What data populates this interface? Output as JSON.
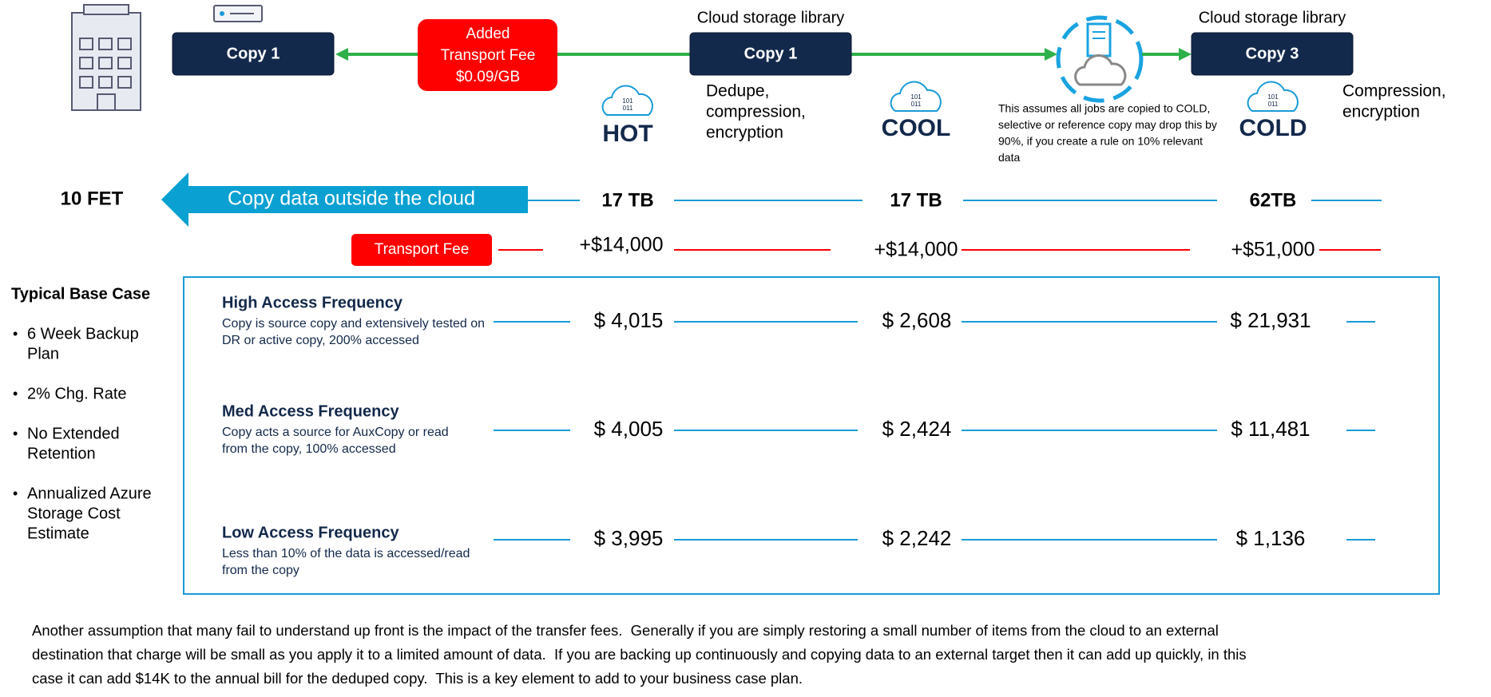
{
  "source_copy": "Copy 1",
  "added_fee": [
    "Added",
    "Transport Fee",
    "$0.09/GB"
  ],
  "library_copies": [
    {
      "header": "Cloud storage library",
      "label": "Copy 1"
    },
    {
      "header": "Cloud storage library",
      "label": "Copy 3"
    }
  ],
  "cloud_icon_text": [
    "101",
    "011"
  ],
  "tiers": [
    {
      "name": "HOT",
      "size": "17 TB",
      "transport": "+$14,000"
    },
    {
      "name": "COOL",
      "size": "17 TB",
      "transport": "+$14,000"
    },
    {
      "name": "COLD",
      "size": "62TB",
      "transport": "+$51,000"
    }
  ],
  "notes": {
    "hot": [
      "Dedupe,",
      "compression,",
      "encryption"
    ],
    "cool": [
      "This assumes all jobs are copied to COLD,",
      "selective or reference copy may drop this by",
      "90%, if you create a rule on 10% relevant",
      "data"
    ],
    "cold": [
      "Compression,",
      "encryption"
    ]
  },
  "copy_out": {
    "label": "10 FET",
    "arrow": "Copy data outside the cloud"
  },
  "transport_fee": "Transport Fee",
  "base_case": {
    "title": "Typical Base Case",
    "bullet": "•",
    "items": [
      [
        "6 Week Backup",
        "Plan"
      ],
      [
        "2% Chg. Rate"
      ],
      [
        "No Extended",
        "Retention"
      ],
      [
        "Annualized Azure",
        "Storage Cost",
        "Estimate"
      ]
    ]
  },
  "rows": [
    {
      "title": "High Access Frequency",
      "description": [
        "Copy is source copy and extensively tested on",
        "DR or active copy, 200% accessed"
      ],
      "costs": [
        "$ 4,015",
        "$ 2,608",
        "$ 21,931"
      ]
    },
    {
      "title": "Med Access Frequency",
      "description": [
        "Copy acts a source for AuxCopy or read",
        "from the copy, 100% accessed"
      ],
      "costs": [
        "$ 4,005",
        "$ 2,424",
        "$ 11,481"
      ]
    },
    {
      "title": "Low Access Frequency",
      "description": [
        "Less than 10% of the data is accessed/read",
        "from the copy"
      ],
      "costs": [
        "$ 3,995",
        "$ 2,242",
        "$ 1,136"
      ]
    }
  ],
  "footer": [
    "Another assumption that many fail to understand up front is the impact of the transfer fees.  Generally if you are simply restoring a small number of items from the cloud to an external",
    "destination that charge will be small as you apply it to a limited amount of data.  If you are backing up continuously and copying data to an external target then it can add up quickly, in this",
    "case it can add $14K to the annual bill for the deduped copy.  This is a key element to add to your business case plan."
  ]
}
